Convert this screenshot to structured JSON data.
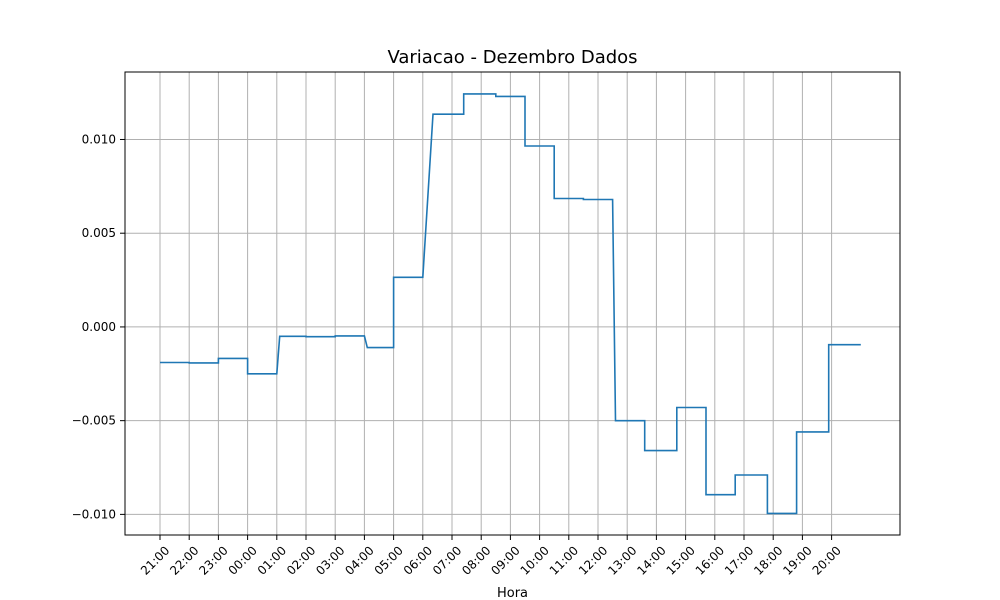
{
  "chart_data": {
    "type": "line",
    "title": "Variacao - Dezembro Dados",
    "xlabel": "Hora",
    "ylabel": "",
    "grid": true,
    "categories": [
      "21:00",
      "22:00",
      "23:00",
      "00:00",
      "01:00",
      "02:00",
      "03:00",
      "04:00",
      "05:00",
      "06:00",
      "07:00",
      "08:00",
      "09:00",
      "10:00",
      "11:00",
      "12:00",
      "13:00",
      "14:00",
      "15:00",
      "16:00",
      "17:00",
      "18:00",
      "19:00",
      "20:00"
    ],
    "yticks": [
      -0.01,
      -0.005,
      0.0,
      0.005,
      0.01
    ],
    "ytick_labels": [
      "−0.010",
      "−0.005",
      "0.000",
      "0.005",
      "0.010"
    ],
    "ylim": [
      -0.0111,
      0.0136
    ],
    "line_color": "#1f77b4",
    "grid_color": "#b0b0b0",
    "steps": [
      {
        "start": 0.0,
        "end": 1.0,
        "value": -0.0019
      },
      {
        "start": 1.0,
        "end": 2.0,
        "value": -0.00192
      },
      {
        "start": 2.0,
        "end": 3.0,
        "value": -0.00168
      },
      {
        "start": 3.0,
        "end": 4.0,
        "value": -0.0025
      },
      {
        "start": 4.1,
        "end": 5.0,
        "value": -0.0005
      },
      {
        "start": 5.0,
        "end": 6.0,
        "value": -0.00052
      },
      {
        "start": 6.0,
        "end": 7.0,
        "value": -0.00048
      },
      {
        "start": 7.1,
        "end": 8.0,
        "value": -0.0011
      },
      {
        "start": 8.0,
        "end": 9.0,
        "value": 0.00265
      },
      {
        "start": 9.35,
        "end": 10.4,
        "value": 0.01135
      },
      {
        "start": 10.4,
        "end": 11.5,
        "value": 0.01243
      },
      {
        "start": 11.5,
        "end": 12.5,
        "value": 0.0123
      },
      {
        "start": 12.5,
        "end": 13.5,
        "value": 0.00965
      },
      {
        "start": 13.5,
        "end": 14.5,
        "value": 0.00685
      },
      {
        "start": 14.5,
        "end": 15.5,
        "value": 0.0068
      },
      {
        "start": 15.6,
        "end": 16.6,
        "value": -0.005
      },
      {
        "start": 16.6,
        "end": 17.7,
        "value": -0.0066
      },
      {
        "start": 17.7,
        "end": 18.7,
        "value": -0.0043
      },
      {
        "start": 18.7,
        "end": 19.7,
        "value": -0.00895
      },
      {
        "start": 19.7,
        "end": 20.8,
        "value": -0.0079
      },
      {
        "start": 20.8,
        "end": 21.8,
        "value": -0.00995
      },
      {
        "start": 21.8,
        "end": 22.9,
        "value": -0.0056
      },
      {
        "start": 22.9,
        "end": 24.0,
        "value": -0.00095
      }
    ]
  }
}
